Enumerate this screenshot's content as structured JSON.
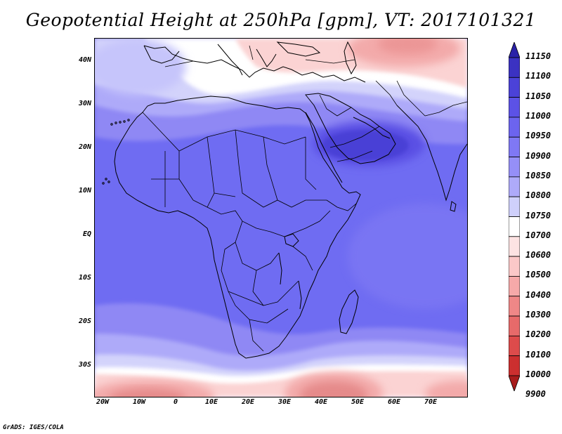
{
  "title": "Geopotential Height at 250hPa [gpm], VT: 2017101321",
  "footer": "GrADS: IGES/COLA",
  "lat_labels": [
    "40N",
    "30N",
    "20N",
    "10N",
    "EQ",
    "10S",
    "20S",
    "30S"
  ],
  "lon_labels": [
    "20W",
    "10W",
    "0",
    "10E",
    "20E",
    "30E",
    "40E",
    "50E",
    "60E",
    "70E"
  ],
  "colorbar": {
    "levels": [
      "11150",
      "11100",
      "11050",
      "11000",
      "10950",
      "10900",
      "10850",
      "10800",
      "10750",
      "10700",
      "10600",
      "10500",
      "10400",
      "10300",
      "10200",
      "10100",
      "10000",
      "9900"
    ],
    "colors": [
      "#2a22a8",
      "#3b32c2",
      "#4b42d8",
      "#5c52e6",
      "#6c64ef",
      "#7f78f4",
      "#958ff7",
      "#aeaaf9",
      "#cfd0fb",
      "#ffffff",
      "#fde3e3",
      "#fbc8c8",
      "#f6a9a9",
      "#ef8787",
      "#e76a6a",
      "#dd4b4b",
      "#cc2f2f",
      "#a81c1c"
    ]
  },
  "map": {
    "region": "Africa, Arabia and western India",
    "lon_range": [
      -22,
      80
    ],
    "lat_range": [
      -37,
      45
    ],
    "field_colors": {
      "deep_red": "#e58a8a",
      "mid_red": "#f3aaaa",
      "light_red": "#fbd3d3",
      "white": "#ffffff",
      "pale_blue": "#d3d3fb",
      "light_blue": "#aeaaf9",
      "mid_blue": "#8f88f4",
      "base_blue": "#6f6cf2",
      "dark_blue": "#4a3fd6"
    }
  }
}
